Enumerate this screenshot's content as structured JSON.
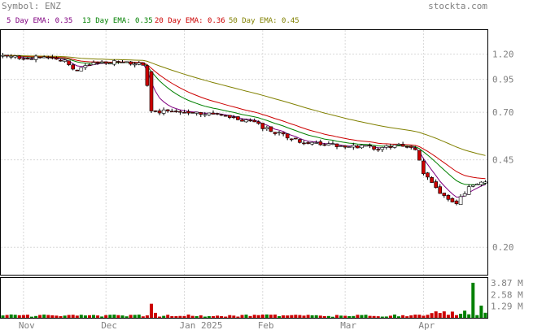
{
  "header": {
    "symbol_text": "Symbol: ENZ",
    "watermark": "stockta.com"
  },
  "legend": [
    {
      "label": "5 Day EMA: 0.35",
      "color": "#800080"
    },
    {
      "label": "13 Day EMA: 0.35",
      "color": "#008000"
    },
    {
      "label": "20 Day EMA: 0.36",
      "color": "#cc0000"
    },
    {
      "label": "50 Day EMA: 0.45",
      "color": "#808000"
    }
  ],
  "chart_data": {
    "type": "candlestick",
    "price_axis": {
      "scale": "log",
      "ticks": [
        "1.20",
        "0.95",
        "0.70",
        "0.45",
        "0.20"
      ],
      "ylim": [
        0.155,
        1.5
      ]
    },
    "volume_axis": {
      "ticks": [
        "3.87 M",
        "2.58 M",
        "1.29 M"
      ],
      "ylim": [
        0,
        4.4
      ]
    },
    "x_labels": [
      "Nov",
      "Dec",
      "Jan 2025",
      "Feb",
      "Mar",
      "Apr"
    ],
    "x_label_index": [
      5,
      25,
      44,
      63,
      83,
      102
    ],
    "n_bars": 118,
    "colors": {
      "up": "#008000",
      "down": "#cc0000",
      "hollow_edge": "#000000",
      "volume_up": "#008000",
      "volume_down": "#cc0000"
    }
  }
}
